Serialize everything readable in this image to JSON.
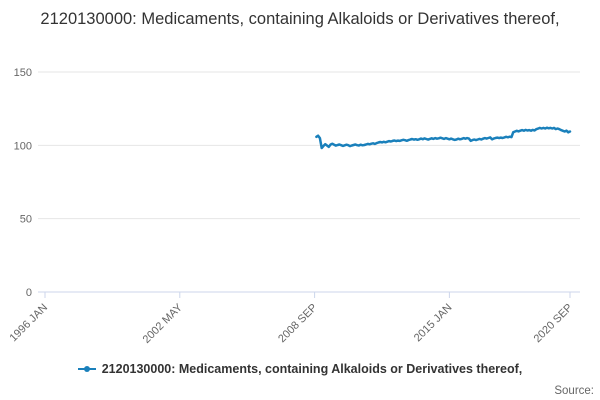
{
  "header": {
    "title": "2120130000: Medicaments, containing Alkaloids or Derivatives thereof,"
  },
  "legend": {
    "label": "2120130000: Medicaments, containing Alkaloids or Derivatives thereof,"
  },
  "source": {
    "label": "Source:"
  },
  "colors": {
    "series_blue": "#1a80bb",
    "axis_line": "#ccd6eb",
    "gridline": "#e6e6e6",
    "axis_text": "#666666"
  },
  "chart_data": {
    "type": "line",
    "title": "2120130000: Medicaments, containing Alkaloids or Derivatives thereof,",
    "xlabel": "",
    "ylabel": "",
    "grid": true,
    "legend_position": "bottom",
    "x_axis": {
      "domain_start": "1996-01",
      "domain_months": 296,
      "ticks": [
        {
          "label": "1996 JAN",
          "month": 0
        },
        {
          "label": "2002 MAY",
          "month": 76
        },
        {
          "label": "2008 SEP",
          "month": 152
        },
        {
          "label": "2015 JAN",
          "month": 228
        },
        {
          "label": "2020 SEP",
          "month": 296
        }
      ]
    },
    "y_axis": {
      "min": 0,
      "max": 150,
      "ticks": [
        0,
        50,
        100,
        150
      ]
    },
    "series": [
      {
        "name": "2120130000: Medicaments, containing Alkaloids or Derivatives thereof,",
        "color": "#1a80bb",
        "start": "2008-10",
        "end": "2020-09",
        "start_month_offset": 153,
        "values": [
          105.8,
          106.6,
          104.9,
          98.2,
          99.6,
          100.8,
          99.9,
          98.9,
          100.6,
          101.1,
          100.4,
          99.8,
          100.2,
          100.6,
          100.1,
          99.6,
          100.0,
          100.4,
          100.1,
          99.5,
          99.9,
          100.2,
          100.6,
          100.1,
          99.9,
          100.4,
          100.0,
          100.2,
          100.6,
          101.0,
          100.7,
          101.1,
          101.4,
          101.0,
          101.5,
          101.9,
          102.3,
          102.0,
          102.4,
          102.1,
          102.5,
          102.9,
          102.6,
          103.0,
          103.3,
          102.9,
          103.2,
          103.0,
          103.4,
          103.8,
          103.5,
          103.1,
          103.6,
          104.0,
          104.3,
          103.9,
          104.2,
          103.8,
          104.1,
          104.6,
          104.2,
          104.7,
          104.3,
          103.9,
          104.4,
          104.8,
          104.4,
          104.9,
          104.5,
          104.8,
          105.2,
          104.8,
          104.4,
          104.9,
          104.5,
          104.1,
          104.6,
          104.1,
          103.7,
          104.0,
          104.5,
          104.1,
          104.4,
          104.9,
          104.5,
          104.9,
          104.6,
          103.1,
          103.6,
          104.0,
          103.6,
          104.0,
          104.4,
          104.0,
          104.5,
          104.9,
          104.6,
          105.0,
          105.4,
          104.1,
          104.6,
          105.0,
          105.3,
          104.9,
          105.3,
          105.0,
          105.4,
          105.8,
          105.5,
          105.9,
          105.6,
          108.9,
          109.4,
          109.9,
          109.5,
          110.0,
          110.4,
          110.0,
          110.5,
          110.1,
          110.4,
          110.0,
          110.5,
          110.1,
          111.0,
          111.4,
          111.9,
          111.5,
          111.9,
          111.5,
          112.0,
          111.6,
          111.9,
          111.5,
          111.9,
          111.1,
          111.5,
          111.0,
          110.4,
          109.9,
          109.4,
          110.0,
          108.9,
          109.4
        ]
      }
    ]
  }
}
